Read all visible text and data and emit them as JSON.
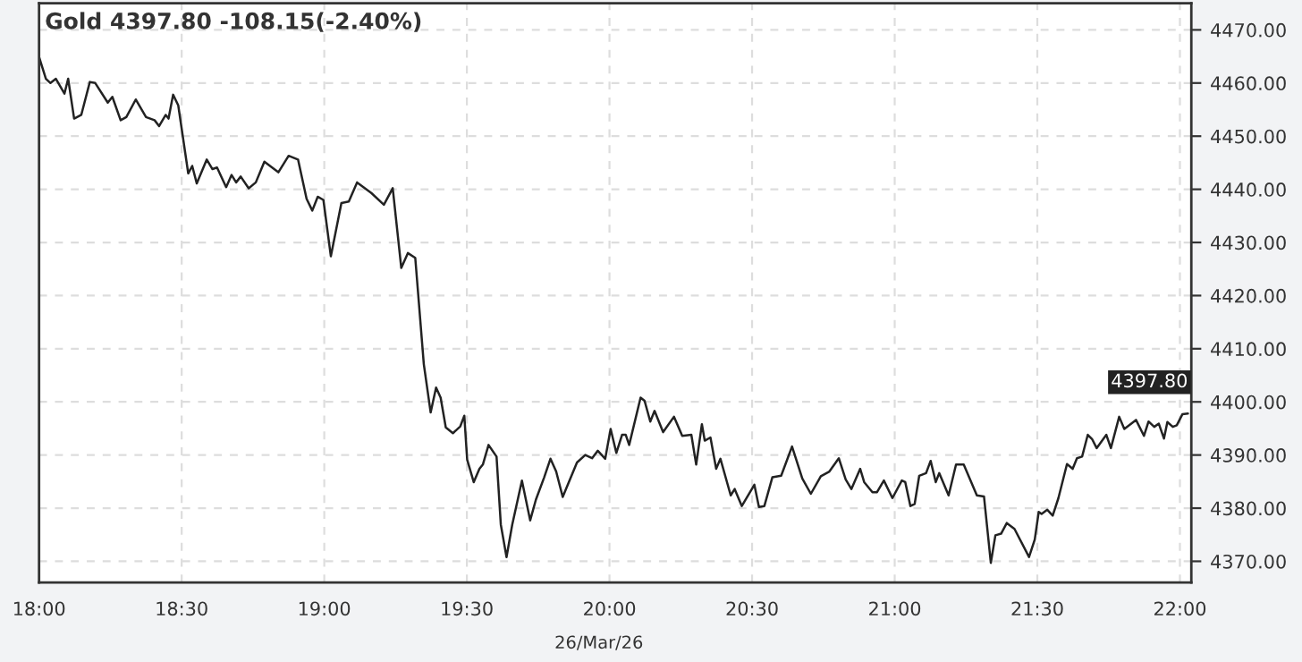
{
  "chart_data": {
    "type": "line",
    "title": "Gold 4397.80 -108.15(-2.40%)",
    "annotations": [
      "26/Mar/26",
      {
        "text": "4397.80",
        "x": 22.028,
        "y": 4397.8
      }
    ],
    "xlim": [
      18.0,
      22.04
    ],
    "ylim": [
      4366,
      4475
    ],
    "xticks": [
      {
        "value": 18,
        "label": "18:00"
      },
      {
        "value": 18.5,
        "label": "18:30"
      },
      {
        "value": 19,
        "label": "19:00"
      },
      {
        "value": 19.5,
        "label": "19:30"
      },
      {
        "value": 20,
        "label": "20:00"
      },
      {
        "value": 20.5,
        "label": "20:30"
      },
      {
        "value": 21,
        "label": "21:00"
      },
      {
        "value": 21.5,
        "label": "21:30"
      },
      {
        "value": 22,
        "label": "22:00"
      }
    ],
    "yticks": [
      {
        "value": 4370,
        "label": "4370.00"
      },
      {
        "value": 4380,
        "label": "4380.00"
      },
      {
        "value": 4390,
        "label": "4390.00"
      },
      {
        "value": 4400,
        "label": "4400.00"
      },
      {
        "value": 4410,
        "label": "4410.00"
      },
      {
        "value": 4420,
        "label": "4420.00"
      },
      {
        "value": 4430,
        "label": "4430.00"
      },
      {
        "value": 4440,
        "label": "4440.00"
      },
      {
        "value": 4450,
        "label": "4450.00"
      },
      {
        "value": 4460,
        "label": "4460.00"
      },
      {
        "value": 4470,
        "label": "4470.00"
      }
    ],
    "grid": true,
    "line_style": "solid",
    "marker": "none",
    "series": [
      {
        "color": "#222222",
        "x": [
          18.0,
          18.024,
          18.04,
          18.059,
          18.089,
          18.102,
          18.123,
          18.148,
          18.178,
          18.197,
          18.241,
          18.257,
          18.286,
          18.306,
          18.339,
          18.375,
          18.405,
          18.421,
          18.444,
          18.454,
          18.47,
          18.488,
          18.523,
          18.537,
          18.553,
          18.588,
          18.608,
          18.624,
          18.656,
          18.675,
          18.691,
          18.707,
          18.735,
          18.76,
          18.79,
          18.839,
          18.875,
          18.908,
          18.938,
          18.958,
          18.977,
          18.997,
          19.023,
          19.06,
          19.086,
          19.115,
          19.165,
          19.209,
          19.24,
          19.27,
          19.293,
          19.319,
          19.349,
          19.373,
          19.392,
          19.408,
          19.426,
          19.451,
          19.477,
          19.491,
          19.501,
          19.524,
          19.544,
          19.556,
          19.576,
          19.604,
          19.619,
          19.639,
          19.659,
          19.693,
          19.722,
          19.742,
          19.771,
          19.793,
          19.813,
          19.836,
          19.886,
          19.915,
          19.939,
          19.959,
          19.985,
          20.004,
          20.024,
          20.044,
          20.057,
          20.069,
          20.109,
          20.123,
          20.143,
          20.158,
          20.188,
          20.226,
          20.255,
          20.287,
          20.304,
          20.324,
          20.334,
          20.354,
          20.374,
          20.389,
          20.425,
          20.439,
          20.464,
          20.508,
          20.524,
          20.543,
          20.571,
          20.602,
          20.64,
          20.676,
          20.706,
          20.741,
          20.771,
          20.804,
          20.828,
          20.848,
          20.879,
          20.893,
          20.922,
          20.938,
          20.962,
          20.992,
          21.025,
          21.037,
          21.055,
          21.07,
          21.086,
          21.11,
          21.126,
          21.144,
          21.156,
          21.189,
          21.215,
          21.242,
          21.288,
          21.313,
          21.337,
          21.353,
          21.373,
          21.393,
          21.42,
          21.471,
          21.491,
          21.505,
          21.515,
          21.535,
          21.554,
          21.574,
          21.604,
          21.624,
          21.639,
          21.657,
          21.677,
          21.692,
          21.708,
          21.742,
          21.758,
          21.787,
          21.805,
          21.846,
          21.874,
          21.89,
          21.91,
          21.926,
          21.944,
          21.956,
          21.975,
          21.989,
          22.009,
          22.028
        ],
        "values": [
          4464.9,
          4460.8,
          4460.0,
          4460.8,
          4458.0,
          4460.8,
          4453.3,
          4454.0,
          4460.2,
          4460.0,
          4456.3,
          4457.4,
          4453.0,
          4453.6,
          4456.9,
          4453.6,
          4453.0,
          4451.9,
          4454.0,
          4453.3,
          4457.8,
          4455.8,
          4443.0,
          4444.4,
          4441.1,
          4445.6,
          4443.8,
          4444.1,
          4440.4,
          4442.7,
          4441.3,
          4442.4,
          4440.2,
          4441.3,
          4445.2,
          4443.2,
          4446.3,
          4445.6,
          4438.2,
          4436.0,
          4438.6,
          4438.0,
          4427.4,
          4437.4,
          4437.7,
          4441.3,
          4439.3,
          4437.1,
          4440.2,
          4425.2,
          4428.0,
          4427.1,
          4407.1,
          4398.0,
          4402.7,
          4400.8,
          4395.2,
          4394.1,
          4395.4,
          4397.4,
          4389.1,
          4384.9,
          4387.4,
          4388.2,
          4391.9,
          4389.7,
          4376.9,
          4370.8,
          4376.9,
          4385.2,
          4377.7,
          4381.6,
          4385.8,
          4389.3,
          4386.9,
          4382.1,
          4388.6,
          4390.0,
          4389.4,
          4390.8,
          4389.3,
          4394.9,
          4390.4,
          4393.8,
          4393.8,
          4391.9,
          4400.8,
          4400.2,
          4396.3,
          4398.3,
          4394.3,
          4397.2,
          4393.6,
          4393.8,
          4388.2,
          4395.8,
          4392.7,
          4393.3,
          4387.4,
          4389.3,
          4382.4,
          4383.6,
          4380.4,
          4384.4,
          4380.2,
          4380.4,
          4385.8,
          4386.1,
          4391.6,
          4385.6,
          4382.7,
          4386.0,
          4386.9,
          4389.4,
          4385.4,
          4383.6,
          4387.4,
          4384.9,
          4383.0,
          4383.0,
          4385.2,
          4381.9,
          4385.2,
          4384.9,
          4380.4,
          4380.8,
          4386.1,
          4386.6,
          4388.9,
          4384.9,
          4386.6,
          4382.4,
          4388.2,
          4388.2,
          4382.4,
          4382.2,
          4369.7,
          4374.9,
          4375.2,
          4377.2,
          4376.1,
          4370.8,
          4374.1,
          4379.3,
          4378.9,
          4379.7,
          4378.6,
          4381.9,
          4388.3,
          4387.4,
          4389.4,
          4389.7,
          4393.8,
          4393.0,
          4391.3,
          4393.8,
          4391.3,
          4397.2,
          4394.9,
          4396.6,
          4393.6,
          4396.3,
          4395.3,
          4395.9,
          4393.1,
          4396.2,
          4395.3,
          4395.6,
          4397.7,
          4397.8
        ]
      }
    ]
  }
}
